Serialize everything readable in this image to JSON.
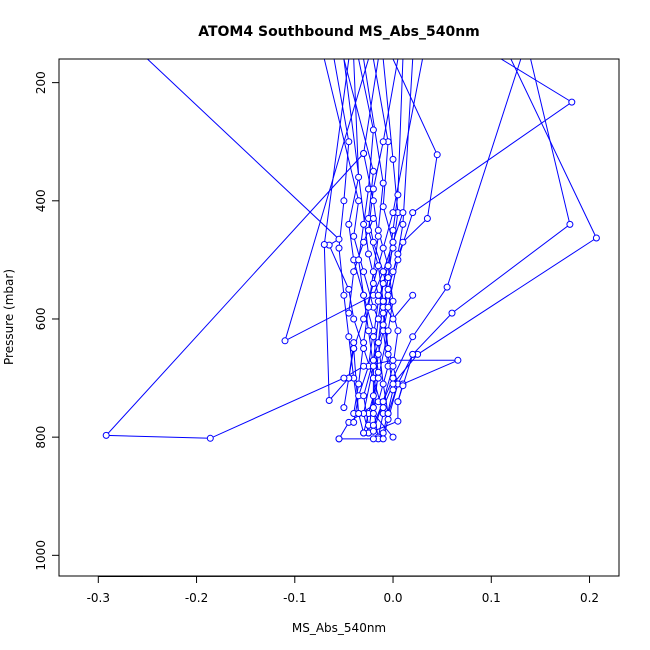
{
  "chart_data": {
    "type": "line",
    "title": "ATOM4 Southbound MS_Abs_540nm",
    "xlabel": "MS_Abs_540nm",
    "ylabel": "Pressure (mbar)",
    "xlim": [
      -0.34,
      0.23
    ],
    "ylim": [
      1035,
      160
    ],
    "x_ticks": [
      -0.3,
      -0.2,
      -0.1,
      0.0,
      0.1,
      0.2
    ],
    "x_tick_labels": [
      "-0.3",
      "-0.2",
      "-0.1",
      "0.0",
      "0.1",
      "0.2"
    ],
    "y_ticks": [
      200,
      400,
      600,
      800,
      1000
    ],
    "y_tick_labels": [
      "200",
      "400",
      "600",
      "800",
      "1000"
    ],
    "y_reversed": true,
    "grid": false,
    "series_color": "#0000ff",
    "series": [
      {
        "points": [
          [
            -0.25,
            160
          ],
          [
            -0.055,
            465
          ],
          [
            -0.065,
            475
          ],
          [
            -0.045,
            550
          ],
          [
            -0.04,
            600
          ],
          [
            -0.03,
            650
          ],
          [
            -0.02,
            700
          ],
          [
            -0.01,
            760
          ],
          [
            -0.015,
            800
          ]
        ]
      },
      {
        "points": [
          [
            -0.07,
            160
          ],
          [
            -0.035,
            400
          ],
          [
            -0.04,
            460
          ],
          [
            -0.03,
            520
          ],
          [
            -0.02,
            580
          ],
          [
            -0.01,
            620
          ],
          [
            -0.005,
            680
          ],
          [
            -0.015,
            740
          ],
          [
            -0.045,
            775
          ],
          [
            -0.055,
            803
          ]
        ]
      },
      {
        "points": [
          [
            -0.05,
            160
          ],
          [
            -0.02,
            350
          ],
          [
            -0.025,
            430
          ],
          [
            -0.02,
            470
          ],
          [
            -0.01,
            520
          ],
          [
            -0.005,
            560
          ],
          [
            0.005,
            620
          ],
          [
            0.0,
            680
          ],
          [
            -0.01,
            740
          ],
          [
            -0.02,
            790
          ]
        ]
      },
      {
        "points": [
          [
            -0.04,
            160
          ],
          [
            -0.035,
            360
          ],
          [
            -0.045,
            440
          ],
          [
            -0.04,
            500
          ],
          [
            -0.03,
            560
          ],
          [
            -0.02,
            620
          ],
          [
            -0.025,
            680
          ],
          [
            -0.035,
            730
          ],
          [
            -0.04,
            775
          ]
        ]
      },
      {
        "points": [
          [
            -0.03,
            160
          ],
          [
            -0.01,
            370
          ],
          [
            -0.015,
            450
          ],
          [
            -0.005,
            510
          ],
          [
            0.0,
            570
          ],
          [
            -0.005,
            620
          ],
          [
            -0.015,
            700
          ],
          [
            -0.025,
            760
          ],
          [
            -0.03,
            793
          ]
        ]
      },
      {
        "points": [
          [
            -0.02,
            160
          ],
          [
            -0.005,
            300
          ],
          [
            -0.01,
            410
          ],
          [
            0.0,
            470
          ],
          [
            -0.005,
            530
          ],
          [
            -0.01,
            590
          ],
          [
            -0.005,
            660
          ],
          [
            0.0,
            720
          ],
          [
            -0.01,
            793
          ]
        ]
      },
      {
        "points": [
          [
            -0.01,
            160
          ],
          [
            0.0,
            330
          ],
          [
            0.005,
            420
          ],
          [
            0.0,
            480
          ],
          [
            -0.01,
            540
          ],
          [
            -0.015,
            600
          ],
          [
            -0.02,
            670
          ],
          [
            -0.02,
            750
          ],
          [
            -0.015,
            803
          ]
        ]
      },
      {
        "points": [
          [
            0.0,
            160
          ],
          [
            0.045,
            322
          ],
          [
            0.035,
            430
          ],
          [
            0.01,
            470
          ],
          [
            0.0,
            520
          ],
          [
            -0.01,
            580
          ],
          [
            -0.005,
            650
          ],
          [
            0.005,
            710
          ],
          [
            -0.005,
            770
          ],
          [
            -0.01,
            803
          ]
        ]
      },
      {
        "points": [
          [
            0.01,
            160
          ],
          [
            0.005,
            390
          ],
          [
            0.0,
            450
          ],
          [
            -0.005,
            510
          ],
          [
            -0.015,
            570
          ],
          [
            -0.02,
            630
          ],
          [
            -0.015,
            690
          ],
          [
            -0.02,
            760
          ],
          [
            0.0,
            800
          ]
        ]
      },
      {
        "points": [
          [
            0.02,
            160
          ],
          [
            0.01,
            440
          ],
          [
            0.005,
            490
          ],
          [
            -0.005,
            550
          ],
          [
            -0.01,
            610
          ],
          [
            -0.02,
            670
          ],
          [
            -0.03,
            730
          ],
          [
            -0.025,
            780
          ]
        ]
      },
      {
        "points": [
          [
            0.03,
            160
          ],
          [
            0.0,
            420
          ],
          [
            -0.01,
            480
          ],
          [
            -0.02,
            540
          ],
          [
            -0.03,
            600
          ],
          [
            -0.04,
            650
          ],
          [
            -0.045,
            700
          ],
          [
            -0.05,
            750
          ]
        ]
      },
      {
        "points": [
          [
            -0.06,
            160
          ],
          [
            -0.045,
            300
          ],
          [
            -0.05,
            400
          ],
          [
            -0.055,
            480
          ],
          [
            -0.05,
            560
          ],
          [
            -0.045,
            630
          ],
          [
            -0.04,
            700
          ],
          [
            -0.035,
            760
          ]
        ]
      },
      {
        "points": [
          [
            -0.035,
            160
          ],
          [
            -0.02,
            280
          ],
          [
            -0.025,
            380
          ],
          [
            -0.03,
            440
          ],
          [
            -0.035,
            500
          ],
          [
            -0.03,
            560
          ],
          [
            -0.025,
            620
          ],
          [
            -0.02,
            680
          ],
          [
            -0.03,
            760
          ],
          [
            -0.025,
            793
          ]
        ]
      },
      {
        "points": [
          [
            -0.015,
            160
          ],
          [
            -0.03,
            320
          ],
          [
            -0.02,
            400
          ],
          [
            -0.015,
            460
          ],
          [
            -0.02,
            520
          ],
          [
            -0.025,
            580
          ],
          [
            -0.03,
            640
          ],
          [
            -0.035,
            710
          ],
          [
            -0.04,
            760
          ]
        ]
      },
      {
        "points": [
          [
            0.005,
            160
          ],
          [
            -0.01,
            300
          ],
          [
            -0.02,
            380
          ],
          [
            -0.025,
            450
          ],
          [
            -0.015,
            510
          ],
          [
            -0.01,
            570
          ],
          [
            -0.015,
            640
          ],
          [
            -0.01,
            710
          ],
          [
            -0.005,
            760
          ]
        ]
      },
      {
        "points": [
          [
            0.13,
            160
          ],
          [
            0.055,
            546
          ],
          [
            0.02,
            630
          ],
          [
            0.0,
            700
          ],
          [
            -0.01,
            740
          ],
          [
            -0.02,
            780
          ]
        ]
      },
      {
        "points": [
          [
            0.11,
            160
          ],
          [
            0.182,
            233
          ],
          [
            0.02,
            420
          ],
          [
            0.005,
            500
          ],
          [
            -0.005,
            580
          ],
          [
            -0.015,
            660
          ],
          [
            -0.02,
            730
          ],
          [
            -0.025,
            793
          ]
        ]
      },
      {
        "points": [
          [
            0.14,
            160
          ],
          [
            0.18,
            440
          ],
          [
            0.06,
            590
          ],
          [
            0.02,
            660
          ],
          [
            0.005,
            710
          ],
          [
            -0.005,
            760
          ]
        ]
      },
      {
        "points": [
          [
            0.12,
            160
          ],
          [
            0.207,
            463
          ],
          [
            0.025,
            660
          ],
          [
            0.0,
            710
          ],
          [
            -0.01,
            750
          ]
        ]
      },
      {
        "points": [
          [
            -0.025,
            160
          ],
          [
            -0.11,
            637
          ],
          [
            -0.02,
            560
          ],
          [
            -0.01,
            520
          ],
          [
            0.0,
            470
          ],
          [
            0.01,
            420
          ]
        ]
      },
      {
        "points": [
          [
            -0.045,
            160
          ],
          [
            -0.07,
            474
          ],
          [
            -0.065,
            738
          ],
          [
            -0.045,
            700
          ],
          [
            -0.04,
            640
          ]
        ]
      },
      {
        "points": [
          [
            -0.05,
            160
          ],
          [
            -0.025,
            490
          ],
          [
            -0.015,
            560
          ],
          [
            0.0,
            600
          ],
          [
            0.02,
            560
          ]
        ]
      },
      {
        "points": [
          [
            -0.03,
            320
          ],
          [
            -0.292,
            797
          ],
          [
            -0.186,
            802
          ],
          [
            -0.05,
            700
          ],
          [
            -0.03,
            680
          ],
          [
            0.0,
            670
          ],
          [
            0.066,
            670
          ],
          [
            0.01,
            710
          ],
          [
            0.005,
            740
          ]
        ]
      },
      {
        "points": [
          [
            -0.04,
            650
          ],
          [
            -0.035,
            760
          ],
          [
            -0.03,
            793
          ],
          [
            -0.02,
            790
          ],
          [
            0.005,
            773
          ],
          [
            0.005,
            740
          ],
          [
            0.01,
            713
          ],
          [
            0.02,
            660
          ]
        ]
      },
      {
        "points": [
          [
            -0.055,
            803
          ],
          [
            -0.02,
            803
          ]
        ]
      },
      {
        "points": [
          [
            -0.045,
            590
          ],
          [
            -0.04,
            520
          ],
          [
            -0.03,
            470
          ],
          [
            -0.02,
            430
          ]
        ]
      }
    ]
  }
}
